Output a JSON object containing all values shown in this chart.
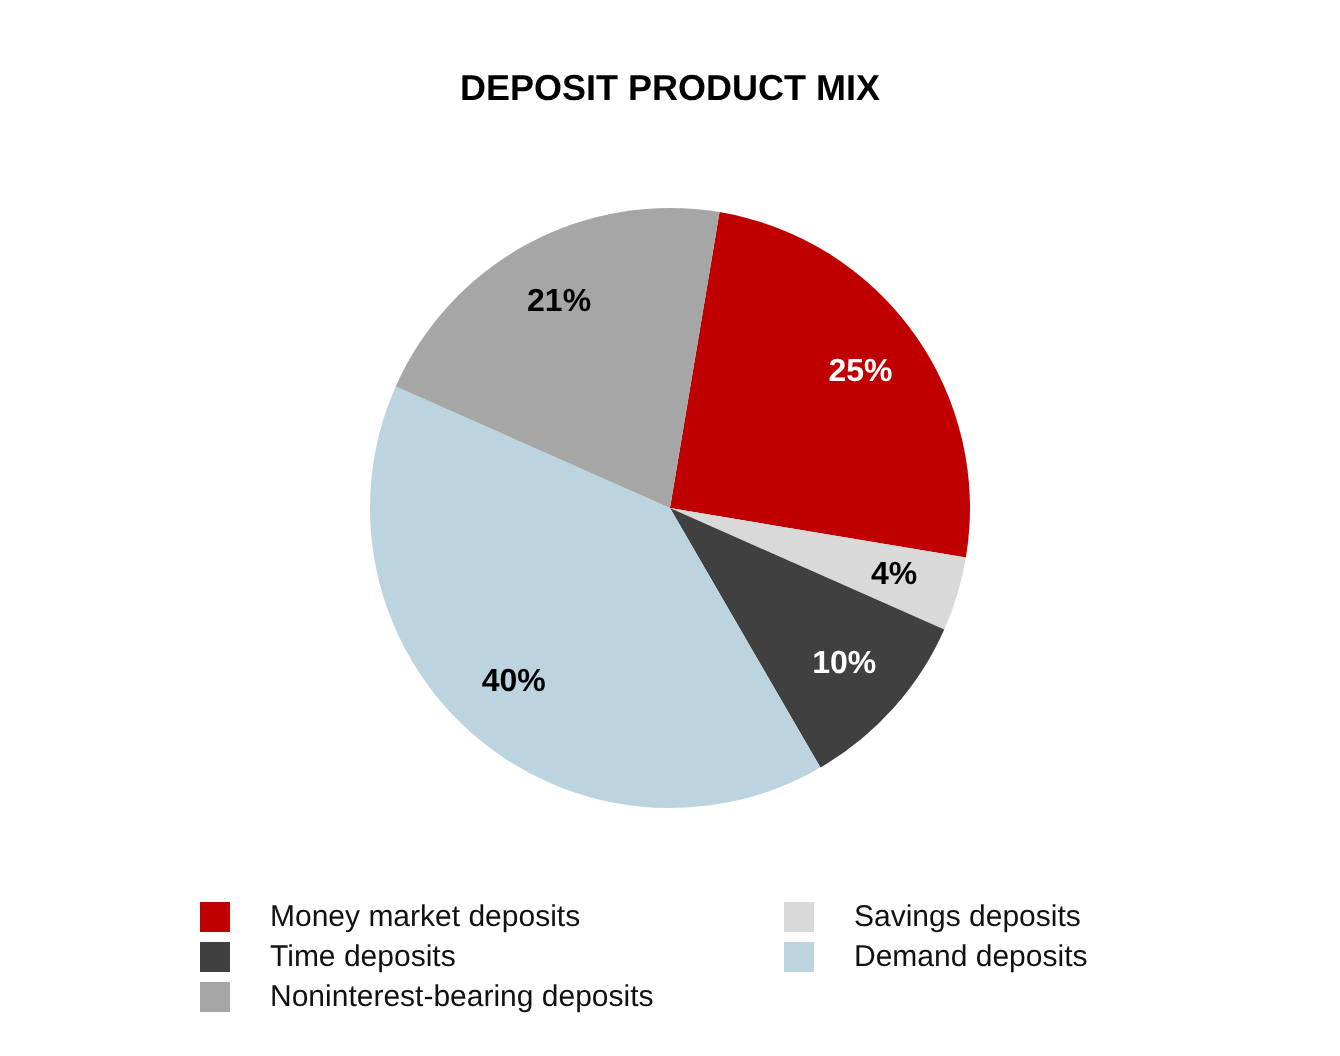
{
  "chart_data": {
    "type": "pie",
    "title": "DEPOSIT PRODUCT MIX",
    "categories": [
      "Money market deposits",
      "Savings deposits",
      "Time deposits",
      "Demand deposits",
      "Noninterest-bearing deposits"
    ],
    "values": [
      25,
      4,
      10,
      40,
      21
    ],
    "colors": [
      "#c00000",
      "#d9d9d9",
      "#404040",
      "#bcd4e0",
      "#a6a6a6"
    ],
    "value_labels": [
      "25%",
      "4%",
      "10%",
      "40%",
      "21%"
    ],
    "legend": "bottom"
  }
}
